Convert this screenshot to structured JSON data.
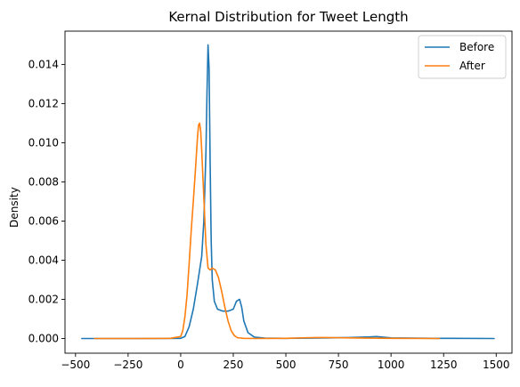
{
  "chart_data": {
    "type": "line",
    "title": "Kernal Distribution for Tweet Length",
    "xlabel": "",
    "ylabel": "Density",
    "xlim": [
      -550,
      1575
    ],
    "ylim": [
      -0.00075,
      0.0157
    ],
    "xticks": [
      -500,
      -250,
      0,
      250,
      500,
      750,
      1000,
      1250,
      1500
    ],
    "xtick_labels": [
      "−500",
      "−250",
      "0",
      "250",
      "500",
      "750",
      "1000",
      "1250",
      "1500"
    ],
    "yticks": [
      0,
      0.002,
      0.004,
      0.006,
      0.008,
      0.01,
      0.012,
      0.014
    ],
    "ytick_labels": [
      "0.000",
      "0.002",
      "0.004",
      "0.006",
      "0.008",
      "0.010",
      "0.012",
      "0.014"
    ],
    "grid": false,
    "legend_position": "top-right",
    "series": [
      {
        "name": "Before",
        "color": "#1f77b4",
        "x": [
          -470,
          -300,
          -100,
          0,
          20,
          40,
          60,
          80,
          100,
          110,
          120,
          125,
          130,
          135,
          140,
          145,
          150,
          160,
          175,
          200,
          225,
          250,
          265,
          280,
          290,
          300,
          320,
          350,
          400,
          500,
          600,
          700,
          800,
          900,
          930,
          960,
          1000,
          1200,
          1490
        ],
        "y": [
          0,
          0,
          0,
          1e-05,
          0.0001,
          0.0006,
          0.0015,
          0.0028,
          0.0042,
          0.006,
          0.0095,
          0.0125,
          0.015,
          0.0138,
          0.009,
          0.005,
          0.003,
          0.0019,
          0.0015,
          0.0014,
          0.0014,
          0.0015,
          0.0019,
          0.002,
          0.0016,
          0.0009,
          0.0003,
          7e-05,
          2e-05,
          1e-05,
          2e-05,
          3e-05,
          5e-05,
          8e-05,
          0.0001,
          7e-05,
          3e-05,
          1e-05,
          0
        ]
      },
      {
        "name": "After",
        "color": "#ff7f0e",
        "x": [
          -410,
          -200,
          -50,
          0,
          10,
          20,
          30,
          40,
          50,
          60,
          70,
          80,
          85,
          90,
          95,
          100,
          110,
          120,
          130,
          140,
          150,
          165,
          180,
          195,
          210,
          225,
          240,
          255,
          270,
          300,
          350,
          500,
          600,
          650,
          700,
          750,
          800,
          900,
          1000,
          1230
        ],
        "y": [
          0,
          0,
          1e-05,
          0.0001,
          0.0004,
          0.0011,
          0.0022,
          0.0038,
          0.0055,
          0.007,
          0.0086,
          0.0103,
          0.0109,
          0.011,
          0.0106,
          0.0096,
          0.0072,
          0.0048,
          0.0036,
          0.0035,
          0.0036,
          0.0035,
          0.0031,
          0.0024,
          0.0016,
          0.0009,
          0.0004,
          0.00015,
          4e-05,
          1e-05,
          0,
          1e-05,
          4e-05,
          5e-05,
          5e-05,
          4e-05,
          3e-05,
          2e-05,
          1e-05,
          0
        ]
      }
    ]
  }
}
